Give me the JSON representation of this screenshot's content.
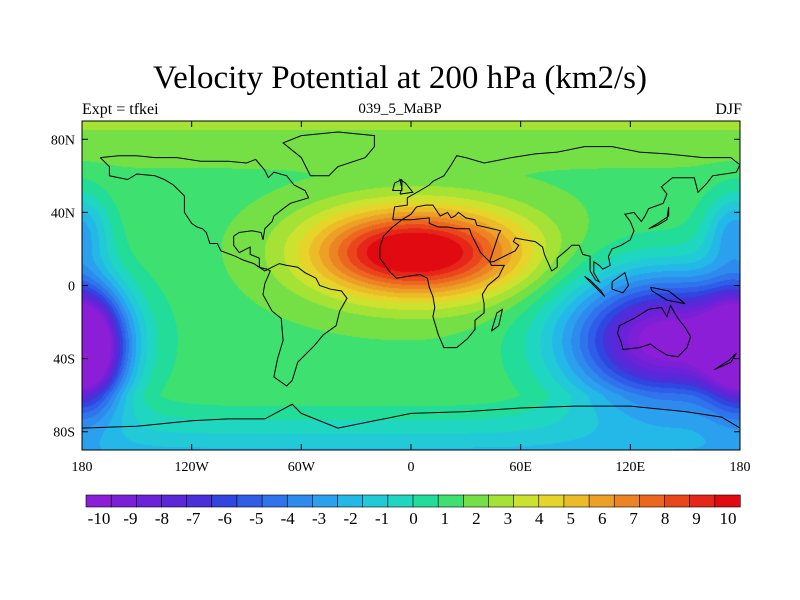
{
  "title": "Velocity Potential at 200 hPa (km2/s)",
  "left_string": "Expt = tfkei",
  "center_string": "039_5_MaBP",
  "right_string": "DJF",
  "x_axis": {
    "ticks": [
      {
        "value": -180,
        "label": "180"
      },
      {
        "value": -120,
        "label": "120W"
      },
      {
        "value": -60,
        "label": "60W"
      },
      {
        "value": 0,
        "label": "0"
      },
      {
        "value": 60,
        "label": "60E"
      },
      {
        "value": 120,
        "label": "120E"
      },
      {
        "value": 180,
        "label": "180"
      }
    ],
    "range": [
      -180,
      180
    ]
  },
  "y_axis": {
    "ticks": [
      {
        "value": 80,
        "label": "80N"
      },
      {
        "value": 40,
        "label": "40N"
      },
      {
        "value": 0,
        "label": "0"
      },
      {
        "value": -40,
        "label": "40S"
      },
      {
        "value": -80,
        "label": "80S"
      }
    ],
    "range": [
      -90,
      90
    ]
  },
  "colorbar": {
    "labels": [
      "-10",
      "-9",
      "-8",
      "-7",
      "-6",
      "-5",
      "-4",
      "-3",
      "-2",
      "-1",
      "0",
      "1",
      "2",
      "3",
      "4",
      "5",
      "6",
      "7",
      "8",
      "9",
      "10"
    ],
    "colors": [
      "#8c1ed8",
      "#7c20d8",
      "#6b22d8",
      "#5a28d8",
      "#4a30d8",
      "#2f46e0",
      "#2f5de8",
      "#2f74ec",
      "#2e8bee",
      "#2ba0ee",
      "#24b8e8",
      "#22cad8",
      "#1fd6c0",
      "#22dc9a",
      "#3ee070",
      "#74e046",
      "#a4e236",
      "#cce22e",
      "#e6d42a",
      "#ecbc28",
      "#eca026",
      "#ec8424",
      "#ec6620",
      "#ea461c",
      "#e62618",
      "#e00a10"
    ],
    "min": -10,
    "max": 10
  },
  "chart_data": {
    "type": "heatmap",
    "title": "Velocity Potential at 200 hPa (km2/s)",
    "units": "km2/s",
    "projection": "cylindrical equidistant",
    "lon_range": [
      -180,
      180
    ],
    "lat_range": [
      -90,
      90
    ],
    "contour_levels": [
      -10,
      -9,
      -8,
      -7,
      -6,
      -5,
      -4,
      -3,
      -2,
      -1,
      0,
      1,
      2,
      3,
      4,
      5,
      6,
      7,
      8,
      9,
      10
    ],
    "centers": [
      {
        "lon": 10,
        "lat": 18,
        "value": 10.5,
        "sx": 38,
        "sy": 17
      },
      {
        "lon": -25,
        "lat": 18,
        "value": 4,
        "sx": 30,
        "sy": 16
      },
      {
        "lon": 140,
        "lat": -30,
        "value": -11,
        "sx": 38,
        "sy": 25
      },
      {
        "lon": -178,
        "lat": -35,
        "value": -10.5,
        "sx": 14,
        "sy": 22
      },
      {
        "lon": 178,
        "lat": 30,
        "value": -2.5,
        "sx": 12,
        "sy": 15
      }
    ],
    "baseline": 1.5,
    "polar_north": 3.5,
    "polar_south": -4
  },
  "coastlines": [
    [
      [
        -170,
        70
      ],
      [
        -160,
        71
      ],
      [
        -150,
        71
      ],
      [
        -140,
        70
      ],
      [
        -128,
        70
      ],
      [
        -115,
        68
      ],
      [
        -100,
        68
      ],
      [
        -90,
        67
      ],
      [
        -85,
        69
      ],
      [
        -80,
        63
      ],
      [
        -78,
        59
      ],
      [
        -75,
        62
      ],
      [
        -68,
        60
      ],
      [
        -64,
        55
      ],
      [
        -58,
        52
      ],
      [
        -56,
        48
      ],
      [
        -66,
        45
      ],
      [
        -70,
        42
      ],
      [
        -75,
        38
      ],
      [
        -76,
        35
      ],
      [
        -80,
        31
      ],
      [
        -81,
        25
      ],
      [
        -82,
        29
      ],
      [
        -87,
        30
      ],
      [
        -94,
        29
      ],
      [
        -97,
        27
      ],
      [
        -97,
        22
      ],
      [
        -94,
        18
      ],
      [
        -88,
        21
      ],
      [
        -88,
        17
      ],
      [
        -83,
        15
      ],
      [
        -83,
        10
      ],
      [
        -79,
        9
      ],
      [
        -77,
        8
      ],
      [
        -80,
        1
      ],
      [
        -81,
        -5
      ],
      [
        -76,
        -14
      ],
      [
        -71,
        -18
      ],
      [
        -70,
        -30
      ],
      [
        -73,
        -40
      ],
      [
        -75,
        -50
      ],
      [
        -68,
        -55
      ],
      [
        -65,
        -52
      ],
      [
        -62,
        -42
      ],
      [
        -57,
        -37
      ],
      [
        -53,
        -33
      ],
      [
        -48,
        -27
      ],
      [
        -41,
        -22
      ],
      [
        -39,
        -14
      ],
      [
        -35,
        -7
      ],
      [
        -38,
        -3
      ],
      [
        -44,
        -2
      ],
      [
        -50,
        0
      ],
      [
        -52,
        4
      ],
      [
        -58,
        7
      ],
      [
        -62,
        10
      ],
      [
        -68,
        11
      ],
      [
        -72,
        12
      ],
      [
        -76,
        10
      ],
      [
        -80,
        8
      ],
      [
        -86,
        12
      ],
      [
        -92,
        14
      ],
      [
        -96,
        16
      ],
      [
        -104,
        19
      ],
      [
        -106,
        23
      ],
      [
        -110,
        23
      ],
      [
        -112,
        29
      ],
      [
        -114,
        31
      ],
      [
        -117,
        32
      ],
      [
        -120,
        34
      ],
      [
        -124,
        40
      ],
      [
        -124,
        46
      ],
      [
        -124,
        49
      ],
      [
        -130,
        55
      ],
      [
        -135,
        58
      ],
      [
        -140,
        60
      ],
      [
        -150,
        61
      ],
      [
        -155,
        58
      ],
      [
        -165,
        60
      ],
      [
        -165,
        65
      ],
      [
        -170,
        70
      ]
    ],
    [
      [
        -10,
        36
      ],
      [
        -9,
        43
      ],
      [
        -2,
        44
      ],
      [
        -2,
        48
      ],
      [
        5,
        52
      ],
      [
        10,
        55
      ],
      [
        12,
        57
      ],
      [
        18,
        60
      ],
      [
        22,
        66
      ],
      [
        25,
        71
      ],
      [
        30,
        70
      ],
      [
        40,
        67
      ],
      [
        45,
        68
      ],
      [
        55,
        70
      ],
      [
        68,
        72
      ],
      [
        80,
        73
      ],
      [
        95,
        76
      ],
      [
        110,
        76
      ],
      [
        125,
        73
      ],
      [
        140,
        72
      ],
      [
        160,
        70
      ],
      [
        175,
        70
      ],
      [
        180,
        66
      ],
      [
        178,
        62
      ],
      [
        165,
        60
      ],
      [
        162,
        56
      ],
      [
        157,
        51
      ],
      [
        155,
        59
      ],
      [
        143,
        59
      ],
      [
        137,
        54
      ],
      [
        140,
        50
      ],
      [
        138,
        45
      ],
      [
        130,
        42
      ],
      [
        128,
        38
      ],
      [
        126,
        35
      ],
      [
        122,
        40
      ],
      [
        117,
        39
      ],
      [
        120,
        35
      ],
      [
        122,
        30
      ],
      [
        120,
        25
      ],
      [
        115,
        22
      ],
      [
        110,
        20
      ],
      [
        108,
        16
      ],
      [
        109,
        11
      ],
      [
        105,
        9
      ],
      [
        103,
        11
      ],
      [
        100,
        13
      ],
      [
        100,
        7
      ],
      [
        103,
        2
      ],
      [
        101,
        3
      ],
      [
        98,
        8
      ],
      [
        98,
        16
      ],
      [
        94,
        17
      ],
      [
        92,
        22
      ],
      [
        88,
        22
      ],
      [
        86,
        20
      ],
      [
        80,
        15
      ],
      [
        80,
        10
      ],
      [
        77,
        8
      ],
      [
        73,
        17
      ],
      [
        72,
        21
      ],
      [
        68,
        24
      ],
      [
        62,
        25
      ],
      [
        57,
        26
      ],
      [
        56,
        24
      ],
      [
        59,
        22
      ],
      [
        57,
        19
      ],
      [
        53,
        17
      ],
      [
        45,
        13
      ],
      [
        43,
        13
      ],
      [
        48,
        28
      ],
      [
        49,
        30
      ],
      [
        36,
        33
      ],
      [
        35,
        36
      ],
      [
        30,
        37
      ],
      [
        26,
        40
      ],
      [
        24,
        38
      ],
      [
        22,
        37
      ],
      [
        20,
        40
      ],
      [
        16,
        38
      ],
      [
        12,
        44
      ],
      [
        8,
        44
      ],
      [
        3,
        43
      ],
      [
        0,
        39
      ],
      [
        -5,
        36
      ],
      [
        -10,
        36
      ]
    ],
    [
      [
        -17,
        21
      ],
      [
        -17,
        15
      ],
      [
        -12,
        8
      ],
      [
        -8,
        4
      ],
      [
        -2,
        5
      ],
      [
        5,
        6
      ],
      [
        9,
        4
      ],
      [
        10,
        -1
      ],
      [
        12,
        -6
      ],
      [
        13,
        -12
      ],
      [
        12,
        -17
      ],
      [
        15,
        -27
      ],
      [
        18,
        -34
      ],
      [
        25,
        -34
      ],
      [
        31,
        -29
      ],
      [
        35,
        -24
      ],
      [
        35,
        -19
      ],
      [
        40,
        -15
      ],
      [
        40,
        -10
      ],
      [
        39,
        -5
      ],
      [
        42,
        0
      ],
      [
        48,
        5
      ],
      [
        51,
        11
      ],
      [
        44,
        11
      ],
      [
        43,
        13
      ],
      [
        38,
        18
      ],
      [
        35,
        24
      ],
      [
        33,
        28
      ],
      [
        32,
        31
      ],
      [
        25,
        31
      ],
      [
        20,
        32
      ],
      [
        15,
        32
      ],
      [
        10,
        34
      ],
      [
        10,
        37
      ],
      [
        0,
        36
      ],
      [
        -5,
        36
      ],
      [
        -10,
        32
      ],
      [
        -15,
        27
      ],
      [
        -17,
        21
      ]
    ],
    [
      [
        114,
        -22
      ],
      [
        122,
        -18
      ],
      [
        130,
        -13
      ],
      [
        137,
        -12
      ],
      [
        140,
        -17
      ],
      [
        142,
        -11
      ],
      [
        146,
        -18
      ],
      [
        150,
        -23
      ],
      [
        153,
        -28
      ],
      [
        151,
        -34
      ],
      [
        146,
        -39
      ],
      [
        140,
        -38
      ],
      [
        135,
        -35
      ],
      [
        131,
        -32
      ],
      [
        125,
        -34
      ],
      [
        116,
        -35
      ],
      [
        115,
        -31
      ],
      [
        113,
        -26
      ],
      [
        114,
        -22
      ]
    ],
    [
      [
        -180,
        -78
      ],
      [
        -150,
        -77
      ],
      [
        -120,
        -74
      ],
      [
        -100,
        -73
      ],
      [
        -80,
        -73
      ],
      [
        -65,
        -65
      ],
      [
        -60,
        -70
      ],
      [
        -40,
        -78
      ],
      [
        -20,
        -74
      ],
      [
        0,
        -70
      ],
      [
        30,
        -69
      ],
      [
        60,
        -67
      ],
      [
        90,
        -66
      ],
      [
        120,
        -66
      ],
      [
        150,
        -69
      ],
      [
        170,
        -72
      ],
      [
        180,
        -78
      ]
    ],
    [
      [
        -55,
        60
      ],
      [
        -45,
        60
      ],
      [
        -40,
        65
      ],
      [
        -25,
        70
      ],
      [
        -20,
        76
      ],
      [
        -20,
        82
      ],
      [
        -40,
        84
      ],
      [
        -60,
        82
      ],
      [
        -70,
        78
      ],
      [
        -60,
        70
      ],
      [
        -55,
        60
      ]
    ],
    [
      [
        95,
        5
      ],
      [
        100,
        0
      ],
      [
        106,
        -6
      ],
      [
        104,
        -3
      ],
      [
        98,
        3
      ],
      [
        95,
        5
      ]
    ],
    [
      [
        110,
        2
      ],
      [
        117,
        7
      ],
      [
        119,
        0
      ],
      [
        116,
        -4
      ],
      [
        110,
        -2
      ],
      [
        110,
        2
      ]
    ],
    [
      [
        131,
        -1
      ],
      [
        141,
        -3
      ],
      [
        150,
        -10
      ],
      [
        140,
        -8
      ],
      [
        132,
        -3
      ],
      [
        131,
        -1
      ]
    ],
    [
      [
        44,
        -25
      ],
      [
        47,
        -15
      ],
      [
        50,
        -13
      ],
      [
        48,
        -22
      ],
      [
        44,
        -25
      ]
    ],
    [
      [
        130,
        31
      ],
      [
        135,
        34
      ],
      [
        141,
        38
      ],
      [
        141,
        43
      ],
      [
        140,
        36
      ],
      [
        135,
        33
      ],
      [
        130,
        31
      ]
    ],
    [
      [
        -6,
        50
      ],
      [
        1,
        51
      ],
      [
        -3,
        56
      ],
      [
        -6,
        58
      ],
      [
        -5,
        53
      ],
      [
        -6,
        50
      ]
    ],
    [
      [
        166,
        -46
      ],
      [
        174,
        -41
      ],
      [
        178,
        -37
      ],
      [
        175,
        -42
      ],
      [
        166,
        -46
      ]
    ],
    [
      [
        -5,
        58
      ],
      [
        -5,
        52
      ],
      [
        -10,
        52
      ],
      [
        -9,
        56
      ],
      [
        -5,
        58
      ]
    ]
  ]
}
